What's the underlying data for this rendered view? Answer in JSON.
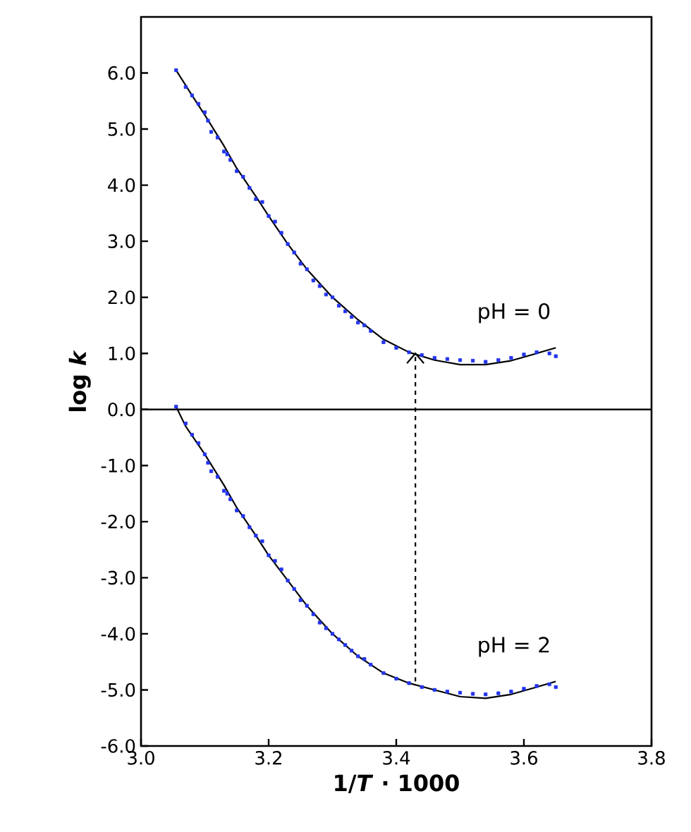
{
  "chart_data": {
    "type": "scatter",
    "xlabel": "1/*T* · 1000",
    "ylabel": "log *k*",
    "xlim": [
      3.0,
      3.8
    ],
    "ylim": [
      -6.0,
      7.0
    ],
    "xticks": [
      {
        "value": 3.0,
        "label": "3.0"
      },
      {
        "value": 3.2,
        "label": "3.2"
      },
      {
        "value": 3.4,
        "label": "3.4"
      },
      {
        "value": 3.6,
        "label": "3.6"
      },
      {
        "value": 3.8,
        "label": "3.8"
      }
    ],
    "yticks": [
      {
        "value": -6,
        "label": "-6.0"
      },
      {
        "value": -5,
        "label": "-5.0"
      },
      {
        "value": -4,
        "label": "-4.0"
      },
      {
        "value": -3,
        "label": "-3.0"
      },
      {
        "value": -2,
        "label": "-2.0"
      },
      {
        "value": -1,
        "label": "-1.0"
      },
      {
        "value": 0,
        "label": "0.0"
      },
      {
        "value": 1,
        "label": "1.0"
      },
      {
        "value": 2,
        "label": "2.0"
      },
      {
        "value": 3,
        "label": "3.0"
      },
      {
        "value": 4,
        "label": "4.0"
      },
      {
        "value": 5,
        "label": "5.0"
      },
      {
        "value": 6,
        "label": "6.0"
      }
    ],
    "grid": false,
    "ref_lines": [
      {
        "axis": "y",
        "value": 0,
        "color": "#000000"
      }
    ],
    "series": [
      {
        "color": "#2233ee",
        "marker": "square",
        "x": [
          3.055,
          3.07,
          3.08,
          3.09,
          3.1,
          3.105,
          3.11,
          3.12,
          3.13,
          3.135,
          3.14,
          3.15,
          3.16,
          3.17,
          3.18,
          3.19,
          3.2,
          3.21,
          3.22,
          3.23,
          3.24,
          3.25,
          3.26,
          3.27,
          3.28,
          3.29,
          3.3,
          3.31,
          3.32,
          3.33,
          3.34,
          3.35,
          3.36,
          3.38,
          3.4,
          3.42,
          3.44,
          3.46,
          3.48,
          3.5,
          3.52,
          3.54,
          3.56,
          3.58,
          3.6,
          3.62,
          3.64,
          3.65
        ],
        "values": [
          6.05,
          5.75,
          5.6,
          5.45,
          5.3,
          5.15,
          4.95,
          4.85,
          4.6,
          4.55,
          4.45,
          4.25,
          4.15,
          3.95,
          3.75,
          3.7,
          3.45,
          3.35,
          3.15,
          2.95,
          2.8,
          2.6,
          2.5,
          2.3,
          2.2,
          2.05,
          2.0,
          1.85,
          1.75,
          1.65,
          1.55,
          1.5,
          1.4,
          1.2,
          1.1,
          1.02,
          0.97,
          0.92,
          0.9,
          0.88,
          0.87,
          0.85,
          0.88,
          0.92,
          0.98,
          1.02,
          1.0,
          0.95
        ]
      },
      {
        "color": "#2233ee",
        "marker": "square",
        "x": [
          3.055,
          3.07,
          3.08,
          3.09,
          3.1,
          3.105,
          3.11,
          3.12,
          3.13,
          3.135,
          3.14,
          3.15,
          3.16,
          3.17,
          3.18,
          3.19,
          3.2,
          3.21,
          3.22,
          3.23,
          3.24,
          3.25,
          3.26,
          3.27,
          3.28,
          3.29,
          3.3,
          3.31,
          3.32,
          3.33,
          3.34,
          3.35,
          3.36,
          3.38,
          3.4,
          3.42,
          3.44,
          3.46,
          3.48,
          3.5,
          3.52,
          3.54,
          3.56,
          3.58,
          3.6,
          3.62,
          3.64,
          3.65
        ],
        "values": [
          0.05,
          -0.25,
          -0.45,
          -0.6,
          -0.8,
          -0.95,
          -1.1,
          -1.2,
          -1.45,
          -1.5,
          -1.6,
          -1.8,
          -1.9,
          -2.1,
          -2.25,
          -2.35,
          -2.6,
          -2.7,
          -2.85,
          -3.05,
          -3.2,
          -3.4,
          -3.5,
          -3.65,
          -3.8,
          -3.9,
          -4.0,
          -4.1,
          -4.2,
          -4.3,
          -4.4,
          -4.45,
          -4.55,
          -4.7,
          -4.8,
          -4.88,
          -4.95,
          -5.0,
          -5.03,
          -5.05,
          -5.07,
          -5.08,
          -5.06,
          -5.03,
          -4.98,
          -4.93,
          -4.9,
          -4.95
        ]
      },
      {
        "type": "line",
        "name": "pH = 0",
        "color": "#000000",
        "marker": "none",
        "line_style": "solid",
        "x": [
          3.055,
          3.08,
          3.1,
          3.13,
          3.15,
          3.18,
          3.2,
          3.23,
          3.26,
          3.3,
          3.34,
          3.38,
          3.42,
          3.46,
          3.5,
          3.54,
          3.58,
          3.62,
          3.65
        ],
        "values": [
          6.05,
          5.6,
          5.25,
          4.7,
          4.3,
          3.8,
          3.45,
          2.95,
          2.5,
          2.0,
          1.6,
          1.25,
          1.02,
          0.88,
          0.8,
          0.8,
          0.87,
          1.0,
          1.1
        ]
      },
      {
        "type": "line",
        "name": "pH = 2",
        "color": "#000000",
        "marker": "none",
        "line_style": "solid",
        "x": [
          3.055,
          3.07,
          3.1,
          3.13,
          3.15,
          3.18,
          3.2,
          3.23,
          3.26,
          3.3,
          3.34,
          3.38,
          3.42,
          3.46,
          3.5,
          3.54,
          3.58,
          3.62,
          3.65
        ],
        "values": [
          0.05,
          -0.3,
          -0.8,
          -1.35,
          -1.75,
          -2.25,
          -2.6,
          -3.05,
          -3.5,
          -4.0,
          -4.4,
          -4.7,
          -4.88,
          -5.0,
          -5.12,
          -5.15,
          -5.08,
          -4.95,
          -4.85
        ]
      },
      {
        "type": "line",
        "color": "#000000",
        "marker": "none",
        "line_style": "dashed",
        "x": [
          3.43,
          3.43
        ],
        "values": [
          -4.85,
          1.0
        ]
      }
    ]
  }
}
